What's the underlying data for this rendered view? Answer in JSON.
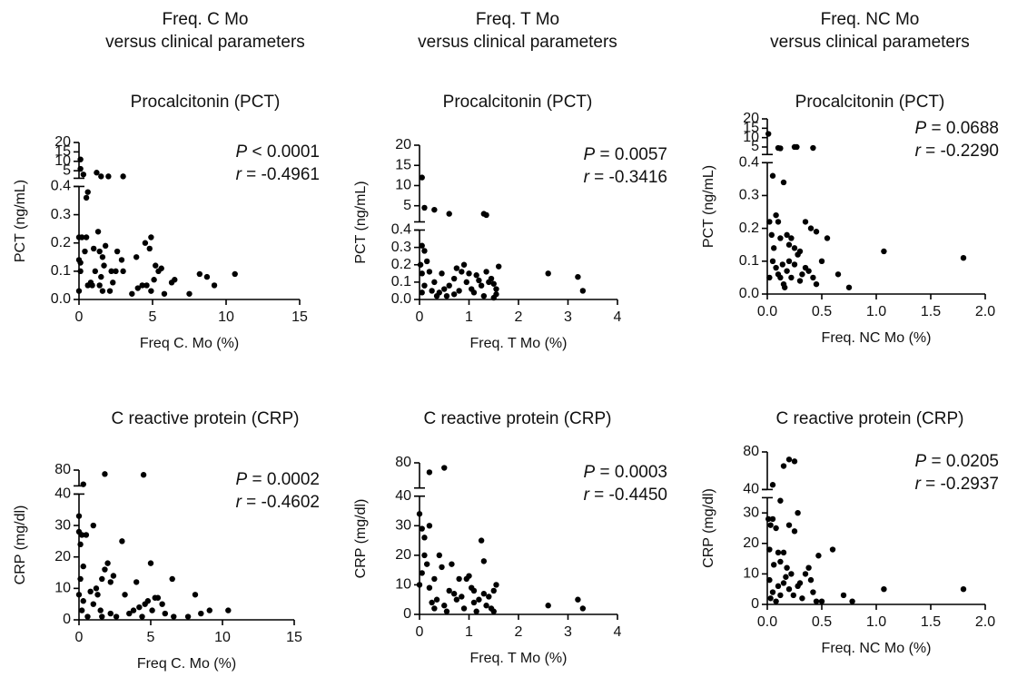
{
  "headers": [
    {
      "line1": "Freq. C Mo",
      "line2": "versus clinical parameters"
    },
    {
      "line1": "Freq. T Mo",
      "line2": "versus clinical parameters"
    },
    {
      "line1": "Freq. NC Mo",
      "line2": "versus clinical parameters"
    }
  ],
  "chart_data": [
    {
      "type": "scatter",
      "title": "Procalcitonin (PCT)",
      "xlabel": "Freq C. Mo (%)",
      "ylabel": "PCT (ng/mL)",
      "color": "#000000",
      "xlim": [
        0,
        15
      ],
      "xticks": [
        0,
        5,
        10,
        15
      ],
      "y_segments": [
        {
          "ylim": [
            0,
            0.4
          ],
          "yticks": [
            {
              "value": 0,
              "label": "0.0"
            },
            0.1,
            0.2,
            0.3,
            0.4
          ]
        },
        {
          "ylim": [
            1,
            20
          ],
          "yticks": [
            5,
            10,
            15,
            20
          ]
        }
      ],
      "annotations": [
        "P < 0.0001",
        "r = -0.4961"
      ],
      "x": [
        0.1,
        0.1,
        0.3,
        0.5,
        0.6,
        1.2,
        1.5,
        2,
        3,
        0,
        0.2,
        0.5,
        0,
        0.1,
        0.4,
        0.1,
        0,
        0.6,
        0.8,
        1,
        1.3,
        1.4,
        1.6,
        1.8,
        1.7,
        1.5,
        1.4,
        1.6,
        2.2,
        2.5,
        2.3,
        2.6,
        2.9,
        3,
        2.1,
        3.6,
        3.9,
        4,
        4.3,
        4.5,
        4.8,
        4.9,
        4.6,
        4.9,
        5.2,
        5.4,
        5.1,
        5.6,
        5.8,
        6.3,
        6.5,
        7.5,
        8.2,
        8.7,
        9.2,
        10.6,
        0.9,
        1.1
      ],
      "values": [
        11,
        6,
        3,
        0.36,
        0.38,
        4,
        2,
        2,
        2,
        0.22,
        0.22,
        0.22,
        0.14,
        0.13,
        0.17,
        0.1,
        0.03,
        0.05,
        0.06,
        0.18,
        0.24,
        0.17,
        0.15,
        0.19,
        0.12,
        0.08,
        0.05,
        0.03,
        0.1,
        0.1,
        0.06,
        0.17,
        0.14,
        0.1,
        0.03,
        0.02,
        0.15,
        0.04,
        0.05,
        0.2,
        0.18,
        0.22,
        0.05,
        0.03,
        0.12,
        0.1,
        0.07,
        0.11,
        0.02,
        0.06,
        0.07,
        0.02,
        0.09,
        0.08,
        0.05,
        0.09,
        0.05,
        0.1
      ]
    },
    {
      "type": "scatter",
      "title": "Procalcitonin (PCT)",
      "xlabel": "Freq. T Mo (%)",
      "ylabel": "PCT (ng/mL)",
      "color": "#000000",
      "xlim": [
        0,
        4
      ],
      "xticks": [
        0,
        1,
        2,
        3,
        4
      ],
      "y_segments": [
        {
          "ylim": [
            0,
            0.4
          ],
          "yticks": [
            {
              "value": 0,
              "label": "0.0"
            },
            0.1,
            0.2,
            0.3,
            0.4
          ]
        },
        {
          "ylim": [
            1,
            20
          ],
          "yticks": [
            5,
            10,
            15,
            20
          ]
        }
      ],
      "annotations": [
        "P = 0.0057",
        "r = -0.3416"
      ],
      "x": [
        0.05,
        0.1,
        0.3,
        0.6,
        1.3,
        1.35,
        0.05,
        0.1,
        0.02,
        0.15,
        0.05,
        0.2,
        0.1,
        0.05,
        0.3,
        0.4,
        0.5,
        0.45,
        0.6,
        0.7,
        0.7,
        0.8,
        0.9,
        0.85,
        0.95,
        1,
        1.05,
        1.1,
        1.2,
        1.25,
        1.3,
        1.35,
        1.4,
        1.45,
        1.5,
        1.55,
        1.5,
        1.6,
        1.55,
        0.55,
        0.35,
        0.25,
        2.6,
        3.2,
        3.3,
        0.75,
        1.15
      ],
      "values": [
        12,
        4.5,
        4,
        3,
        3,
        2.7,
        0.31,
        0.28,
        0.2,
        0.22,
        0.15,
        0.16,
        0.08,
        0.04,
        0.1,
        0.04,
        0.06,
        0.15,
        0.08,
        0.12,
        0.03,
        0.05,
        0.2,
        0.16,
        0.1,
        0.15,
        0.06,
        0.04,
        0.11,
        0.08,
        0.02,
        0.16,
        0.1,
        0.12,
        0.09,
        0.03,
        0.01,
        0.19,
        0.06,
        0.02,
        0.02,
        0.05,
        0.15,
        0.13,
        0.05,
        0.18,
        0.14
      ]
    },
    {
      "type": "scatter",
      "title": "Procalcitonin (PCT)",
      "xlabel": "Freq. NC Mo (%)",
      "ylabel": "PCT (ng/mL)",
      "color": "#000000",
      "xlim": [
        0,
        2
      ],
      "xticks": [
        {
          "value": 0,
          "label": "0.0"
        },
        0.5,
        {
          "value": 1,
          "label": "1.0"
        },
        1.5,
        {
          "value": 2,
          "label": "2.0"
        }
      ],
      "y_segments": [
        {
          "ylim": [
            0,
            0.4
          ],
          "yticks": [
            {
              "value": 0,
              "label": "0.0"
            },
            0.1,
            0.2,
            0.3,
            0.4
          ]
        },
        {
          "ylim": [
            1,
            20
          ],
          "yticks": [
            5,
            10,
            15,
            20
          ]
        }
      ],
      "annotations": [
        "P = 0.0688",
        "r = -0.2290"
      ],
      "x": [
        0.01,
        0.1,
        0.12,
        0.25,
        0.27,
        0.42,
        0.05,
        0.15,
        0.02,
        0.08,
        0.1,
        0.04,
        0.06,
        0.12,
        0.18,
        0.2,
        0.22,
        0.25,
        0.28,
        0.35,
        0.4,
        0.45,
        0.55,
        0.05,
        0.08,
        0.1,
        0.12,
        0.14,
        0.15,
        0.16,
        0.18,
        0.2,
        0.22,
        0.25,
        0.3,
        0.32,
        0.35,
        0.38,
        0.42,
        0.45,
        0.5,
        0.65,
        0.75,
        1.07,
        1.8,
        0.02,
        0.3
      ],
      "values": [
        12,
        4.5,
        4.3,
        5,
        5,
        4.5,
        0.36,
        0.34,
        0.22,
        0.24,
        0.22,
        0.18,
        0.14,
        0.17,
        0.18,
        0.15,
        0.17,
        0.14,
        0.12,
        0.22,
        0.2,
        0.19,
        0.17,
        0.1,
        0.08,
        0.06,
        0.05,
        0.09,
        0.03,
        0.02,
        0.07,
        0.1,
        0.05,
        0.09,
        0.04,
        0.06,
        0.08,
        0.07,
        0.05,
        0.03,
        0.1,
        0.06,
        0.02,
        0.13,
        0.11,
        0.05,
        0.13
      ]
    },
    {
      "type": "scatter",
      "title": "C reactive protein (CRP)",
      "xlabel": "Freq C. Mo (%)",
      "ylabel": "CRP (mg/dl)",
      "color": "#000000",
      "xlim": [
        0,
        15
      ],
      "xticks": [
        0,
        5,
        10,
        15
      ],
      "y_segments": [
        {
          "ylim": [
            0,
            40
          ],
          "yticks": [
            0,
            10,
            20,
            30,
            40
          ]
        },
        {
          "ylim": [
            40,
            80
          ],
          "yticks": [
            80
          ]
        }
      ],
      "annotations": [
        "P = 0.0002",
        "r = -0.4602"
      ],
      "x": [
        0.3,
        1.8,
        4.5,
        0,
        0,
        0.2,
        0.5,
        1,
        0.1,
        0.3,
        0.1,
        0,
        0.3,
        0.2,
        0.8,
        1,
        1.2,
        1.3,
        1.5,
        1.6,
        1.8,
        2,
        2.2,
        2.4,
        2.2,
        2.6,
        3,
        3.2,
        3.5,
        3.8,
        4,
        4.4,
        4.6,
        4.8,
        5,
        5.1,
        5.3,
        5.5,
        5.8,
        6,
        6.5,
        6.6,
        7.6,
        8.1,
        8.5,
        9.1,
        10.4,
        4.2,
        1.6,
        0.6
      ],
      "values": [
        44,
        70,
        68,
        33,
        28,
        27,
        27,
        30,
        24,
        17,
        13,
        8,
        6,
        3,
        9,
        5,
        10,
        8,
        3,
        1,
        16,
        18,
        12,
        14,
        2,
        1,
        25,
        8,
        2,
        3,
        12,
        1,
        5,
        6,
        18,
        3,
        7,
        7,
        5,
        2,
        13,
        1,
        1,
        8,
        2,
        3,
        3,
        4,
        13,
        1
      ]
    },
    {
      "type": "scatter",
      "title": "C reactive protein (CRP)",
      "xlabel": "Freq. T Mo (%)",
      "ylabel": "CRP (mg/dl)",
      "color": "#000000",
      "xlim": [
        0,
        4
      ],
      "xticks": [
        0,
        1,
        2,
        3,
        4
      ],
      "y_segments": [
        {
          "ylim": [
            0,
            40
          ],
          "yticks": [
            0,
            10,
            20,
            30,
            40
          ]
        },
        {
          "ylim": [
            40,
            80
          ],
          "yticks": [
            80
          ]
        }
      ],
      "annotations": [
        "P = 0.0003",
        "r = -0.4450"
      ],
      "x": [
        0.2,
        0.5,
        0,
        0.05,
        0.1,
        0.2,
        0.1,
        0.05,
        0,
        0.2,
        0.3,
        0.35,
        0.4,
        0.45,
        0.5,
        0.6,
        0.65,
        0.7,
        0.8,
        0.85,
        0.9,
        0.95,
        1,
        1.05,
        1.1,
        1.15,
        1.2,
        1.25,
        1.3,
        1.3,
        1.35,
        1.4,
        1.45,
        1.5,
        1.55,
        1.5,
        0.55,
        0.3,
        0.25,
        2.6,
        3.2,
        3.3,
        0.75,
        1.1,
        0.15
      ],
      "values": [
        65,
        72,
        34,
        29,
        26,
        30,
        20,
        14,
        10,
        9,
        12,
        5,
        20,
        16,
        3,
        8,
        17,
        7,
        12,
        6,
        2,
        12,
        13,
        9,
        4,
        1,
        5,
        25,
        18,
        7,
        3,
        6,
        2,
        8,
        10,
        1,
        1,
        2,
        4,
        3,
        5,
        2,
        5,
        8,
        17
      ]
    },
    {
      "type": "scatter",
      "title": "C reactive protein (CRP)",
      "xlabel": "Freq. NC Mo (%)",
      "ylabel": "CRP (mg/dl)",
      "color": "#000000",
      "xlim": [
        0,
        2
      ],
      "xticks": [
        {
          "value": 0,
          "label": "0.0"
        },
        0.5,
        {
          "value": 1,
          "label": "1.0"
        },
        1.5,
        {
          "value": 2,
          "label": "2.0"
        }
      ],
      "y_segments": [
        {
          "ylim": [
            0,
            35
          ],
          "yticks": [
            0,
            10,
            20,
            30
          ]
        },
        {
          "ylim": [
            40,
            80
          ],
          "yticks": [
            40,
            80
          ]
        }
      ],
      "annotations": [
        "P = 0.0205",
        "r = -0.2937"
      ],
      "x": [
        0.05,
        0.15,
        0.2,
        0.25,
        0.01,
        0.03,
        0.05,
        0.08,
        0.12,
        0.02,
        0.06,
        0.1,
        0.15,
        0.18,
        0.2,
        0.25,
        0.28,
        0.22,
        0.1,
        0.05,
        0.03,
        0.08,
        0.12,
        0.15,
        0.17,
        0.2,
        0.24,
        0.3,
        0.32,
        0.35,
        0.38,
        0.4,
        0.42,
        0.45,
        0.47,
        0.5,
        0.6,
        0.7,
        0.78,
        1.07,
        1.8,
        0.28,
        0.12,
        0.02
      ],
      "values": [
        45,
        65,
        72,
        70,
        28,
        26,
        28,
        25,
        34,
        18,
        13,
        17,
        17,
        12,
        26,
        24,
        30,
        10,
        6,
        4,
        2,
        1,
        3,
        7,
        9,
        5,
        3,
        7,
        2,
        10,
        12,
        8,
        4,
        1,
        16,
        1,
        18,
        3,
        1,
        5,
        5,
        6,
        14,
        8
      ]
    }
  ]
}
